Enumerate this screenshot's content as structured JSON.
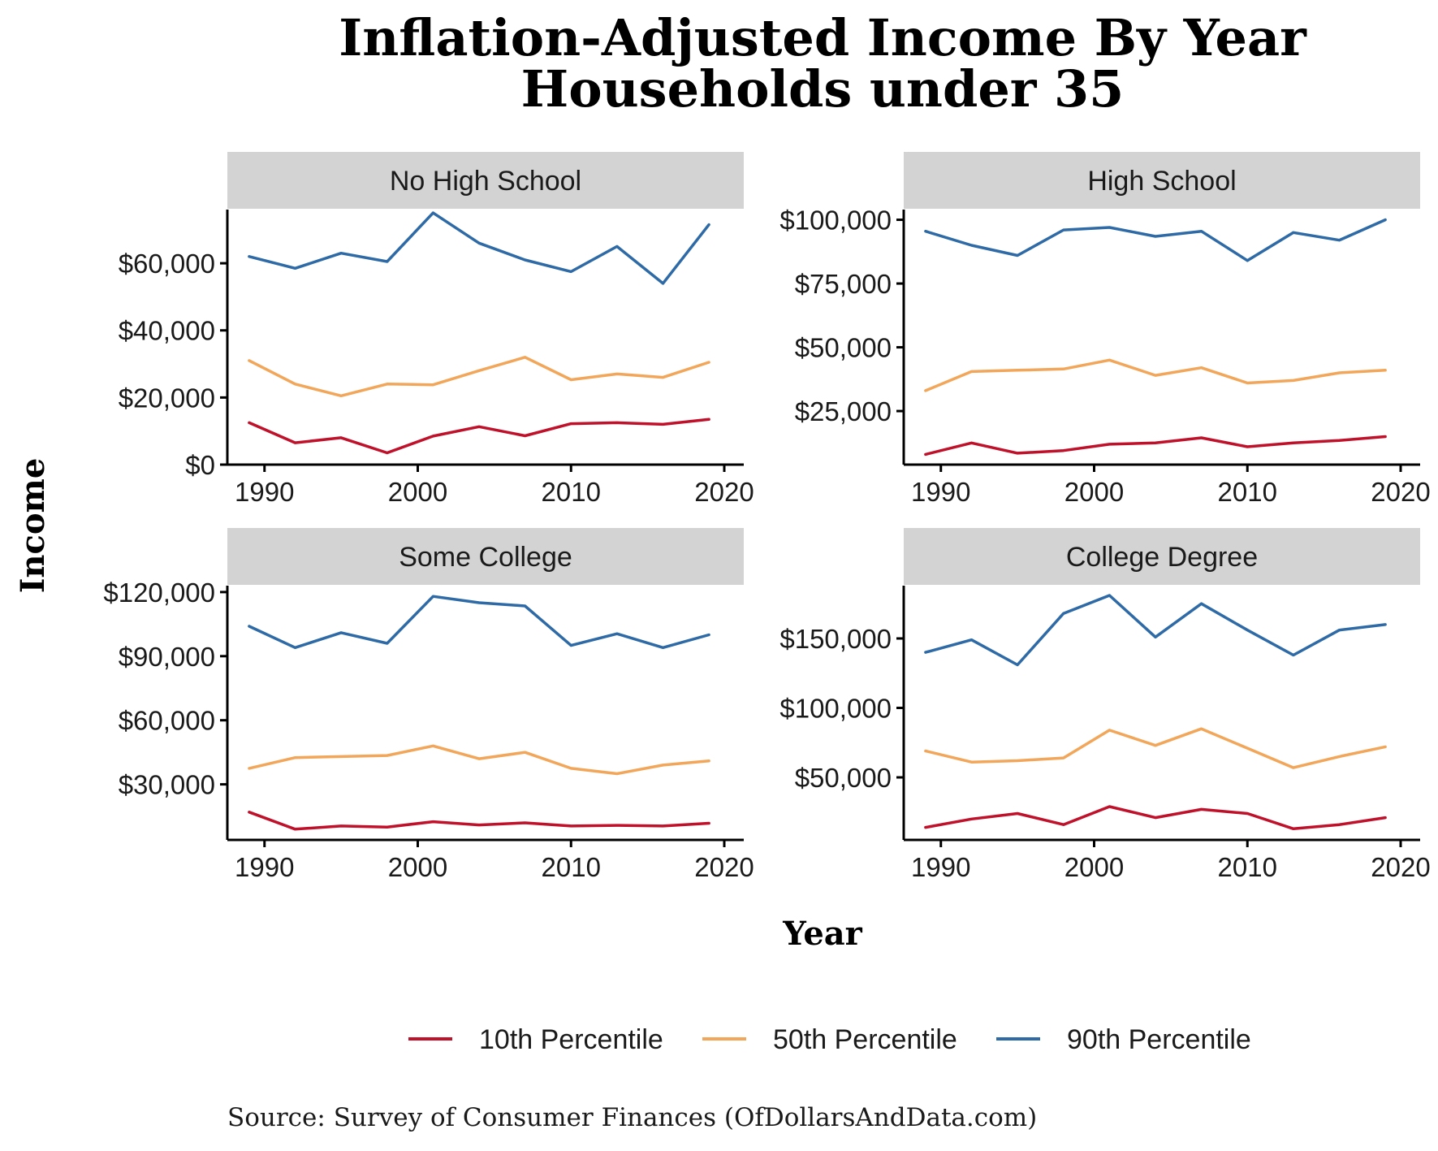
{
  "title_line1": "Inflation-Adjusted Income By Year",
  "title_line2": "Households under 35",
  "xlabel": "Year",
  "ylabel": "Income",
  "source": "Source:  Survey of Consumer Finances (OfDollarsAndData.com)",
  "legend": [
    {
      "label": "10th Percentile",
      "color": "#c0112b"
    },
    {
      "label": "50th Percentile",
      "color": "#f2a65a"
    },
    {
      "label": "90th Percentile",
      "color": "#2e6aa6"
    }
  ],
  "chart_data": [
    {
      "type": "line",
      "panel": "No High School",
      "x": [
        1989,
        1992,
        1995,
        1998,
        2001,
        2004,
        2007,
        2010,
        2013,
        2016,
        2019
      ],
      "xlim": [
        1988,
        2020
      ],
      "xticks": [
        1990,
        2000,
        2010,
        2020
      ],
      "ylim": [
        0,
        76000
      ],
      "yticks": [
        0,
        20000,
        40000,
        60000
      ],
      "ytick_labels": [
        "$0",
        "$20,000",
        "$40,000",
        "$60,000"
      ],
      "series": [
        {
          "name": "10th Percentile",
          "values": [
            12500,
            6500,
            8000,
            3500,
            8500,
            11300,
            8600,
            12200,
            12500,
            12000,
            13500
          ]
        },
        {
          "name": "50th Percentile",
          "values": [
            31000,
            24000,
            20500,
            24000,
            23800,
            28000,
            32000,
            25300,
            27000,
            26000,
            30500
          ]
        },
        {
          "name": "90th Percentile",
          "values": [
            62000,
            58500,
            63000,
            60500,
            75000,
            66000,
            61000,
            57500,
            65000,
            54000,
            71500
          ]
        }
      ]
    },
    {
      "type": "line",
      "panel": "High School",
      "x": [
        1989,
        1992,
        1995,
        1998,
        2001,
        2004,
        2007,
        2010,
        2013,
        2016,
        2019
      ],
      "xlim": [
        1988,
        2020
      ],
      "xticks": [
        1990,
        2000,
        2010,
        2020
      ],
      "ylim": [
        4000,
        104000
      ],
      "yticks": [
        25000,
        50000,
        75000,
        100000
      ],
      "ytick_labels": [
        "$25,000",
        "$50,000",
        "$75,000",
        "$100,000"
      ],
      "series": [
        {
          "name": "10th Percentile",
          "values": [
            8000,
            12500,
            8500,
            9500,
            12000,
            12500,
            14500,
            11000,
            12500,
            13500,
            15000
          ]
        },
        {
          "name": "50th Percentile",
          "values": [
            33000,
            40500,
            41000,
            41500,
            45000,
            39000,
            42000,
            36000,
            37000,
            40000,
            41000
          ]
        },
        {
          "name": "90th Percentile",
          "values": [
            95500,
            90000,
            86000,
            96000,
            97000,
            93500,
            95500,
            84000,
            95000,
            92000,
            100000
          ]
        }
      ]
    },
    {
      "type": "line",
      "panel": "Some College",
      "x": [
        1989,
        1992,
        1995,
        1998,
        2001,
        2004,
        2007,
        2010,
        2013,
        2016,
        2019
      ],
      "xlim": [
        1988,
        2020
      ],
      "xticks": [
        1990,
        2000,
        2010,
        2020
      ],
      "ylim": [
        4000,
        123000
      ],
      "yticks": [
        30000,
        60000,
        90000,
        120000
      ],
      "ytick_labels": [
        "$30,000",
        "$60,000",
        "$90,000",
        "$120,000"
      ],
      "series": [
        {
          "name": "10th Percentile",
          "values": [
            17000,
            9000,
            10500,
            10000,
            12500,
            11000,
            12000,
            10500,
            10800,
            10500,
            11800
          ]
        },
        {
          "name": "50th Percentile",
          "values": [
            37500,
            42500,
            43000,
            43500,
            48000,
            42000,
            45000,
            37500,
            35000,
            39000,
            41000
          ]
        },
        {
          "name": "90th Percentile",
          "values": [
            104000,
            94000,
            101000,
            96000,
            118000,
            115000,
            113500,
            95000,
            100500,
            94000,
            100000
          ]
        }
      ]
    },
    {
      "type": "line",
      "panel": "College Degree",
      "x": [
        1989,
        1992,
        1995,
        1998,
        2001,
        2004,
        2007,
        2010,
        2013,
        2016,
        2019
      ],
      "xlim": [
        1988,
        2020
      ],
      "xticks": [
        1990,
        2000,
        2010,
        2020
      ],
      "ylim": [
        5000,
        188000
      ],
      "yticks": [
        50000,
        100000,
        150000
      ],
      "ytick_labels": [
        "$50,000",
        "$100,000",
        "$150,000"
      ],
      "series": [
        {
          "name": "10th Percentile",
          "values": [
            14000,
            20000,
            24000,
            16000,
            29000,
            21000,
            27000,
            24000,
            13000,
            16000,
            21000
          ]
        },
        {
          "name": "50th Percentile",
          "values": [
            69000,
            61000,
            62000,
            64000,
            84000,
            73000,
            85000,
            71000,
            57000,
            65000,
            72000
          ]
        },
        {
          "name": "90th Percentile",
          "values": [
            140000,
            149000,
            131000,
            168000,
            181000,
            151000,
            175000,
            156000,
            138000,
            156000,
            160000
          ]
        }
      ]
    }
  ]
}
